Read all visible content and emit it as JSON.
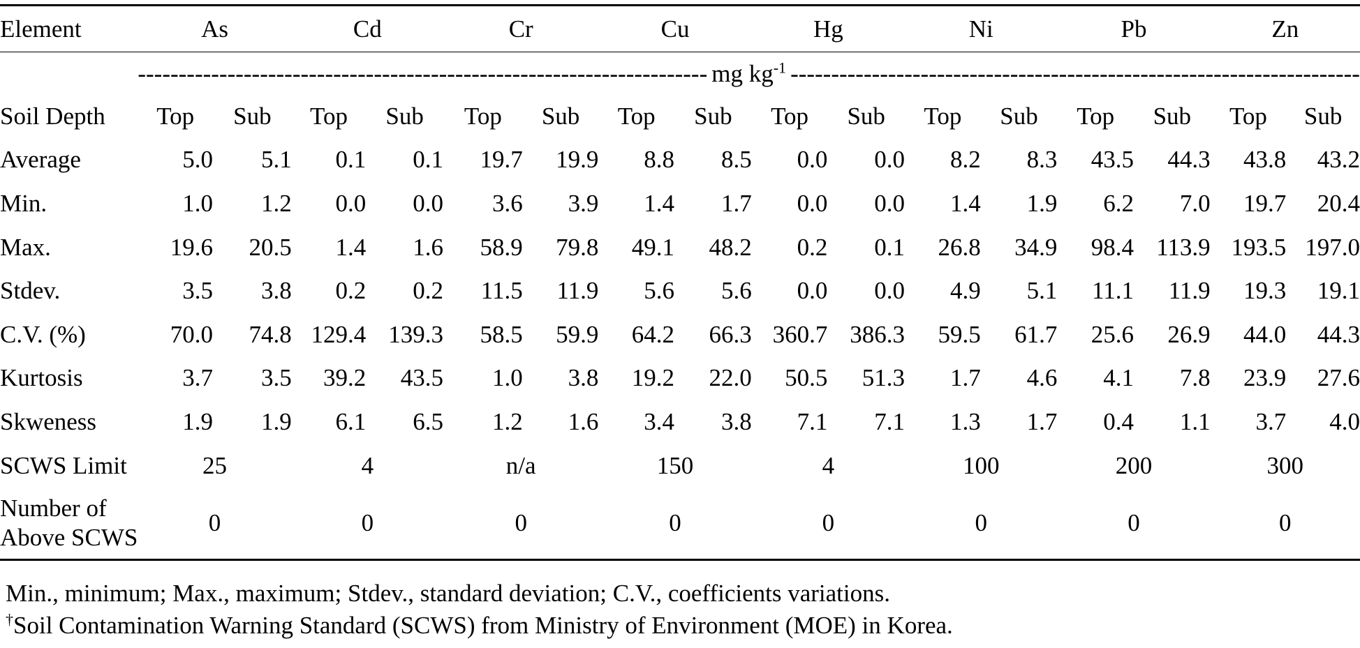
{
  "table": {
    "header_label": "Element",
    "elements": [
      "As",
      "Cd",
      "Cr",
      "Cu",
      "Hg",
      "Ni",
      "Pb",
      "Zn"
    ],
    "unit": "mg kg",
    "unit_sup": "-1",
    "depth_label": "Soil Depth",
    "depths": [
      "Top",
      "Sub"
    ],
    "rows": [
      {
        "label": "Average",
        "values": [
          "5.0",
          "5.1",
          "0.1",
          "0.1",
          "19.7",
          "19.9",
          "8.8",
          "8.5",
          "0.0",
          "0.0",
          "8.2",
          "8.3",
          "43.5",
          "44.3",
          "43.8",
          "43.2"
        ]
      },
      {
        "label": "Min.",
        "values": [
          "1.0",
          "1.2",
          "0.0",
          "0.0",
          "3.6",
          "3.9",
          "1.4",
          "1.7",
          "0.0",
          "0.0",
          "1.4",
          "1.9",
          "6.2",
          "7.0",
          "19.7",
          "20.4"
        ]
      },
      {
        "label": "Max.",
        "values": [
          "19.6",
          "20.5",
          "1.4",
          "1.6",
          "58.9",
          "79.8",
          "49.1",
          "48.2",
          "0.2",
          "0.1",
          "26.8",
          "34.9",
          "98.4",
          "113.9",
          "193.5",
          "197.0"
        ]
      },
      {
        "label": "Stdev.",
        "values": [
          "3.5",
          "3.8",
          "0.2",
          "0.2",
          "11.5",
          "11.9",
          "5.6",
          "5.6",
          "0.0",
          "0.0",
          "4.9",
          "5.1",
          "11.1",
          "11.9",
          "19.3",
          "19.1"
        ]
      },
      {
        "label": "C.V. (%)",
        "values": [
          "70.0",
          "74.8",
          "129.4",
          "139.3",
          "58.5",
          "59.9",
          "64.2",
          "66.3",
          "360.7",
          "386.3",
          "59.5",
          "61.7",
          "25.6",
          "26.9",
          "44.0",
          "44.3"
        ]
      },
      {
        "label": "Kurtosis",
        "values": [
          "3.7",
          "3.5",
          "39.2",
          "43.5",
          "1.0",
          "3.8",
          "19.2",
          "22.0",
          "50.5",
          "51.3",
          "1.7",
          "4.6",
          "4.1",
          "7.8",
          "23.9",
          "27.6"
        ]
      },
      {
        "label": "Skweness",
        "values": [
          "1.9",
          "1.9",
          "6.1",
          "6.5",
          "1.2",
          "1.6",
          "3.4",
          "3.8",
          "7.1",
          "7.1",
          "1.3",
          "1.7",
          "0.4",
          "1.1",
          "3.7",
          "4.0"
        ]
      }
    ],
    "scws": {
      "label": "SCWS Limit",
      "values": [
        "25",
        "4",
        "n/a",
        "150",
        "4",
        "100",
        "200",
        "300"
      ]
    },
    "above": {
      "label_line1": "Number of",
      "label_line2": "Above SCWS",
      "values": [
        "0",
        "0",
        "0",
        "0",
        "0",
        "0",
        "0",
        "0"
      ]
    }
  },
  "notes": {
    "line1": "Min., minimum; Max., maximum; Stdev., standard deviation; C.V., coefficients variations.",
    "dagger": "†",
    "line2": "Soil Contamination Warning Standard (SCWS) from Ministry of Environment (MOE) in Korea."
  }
}
